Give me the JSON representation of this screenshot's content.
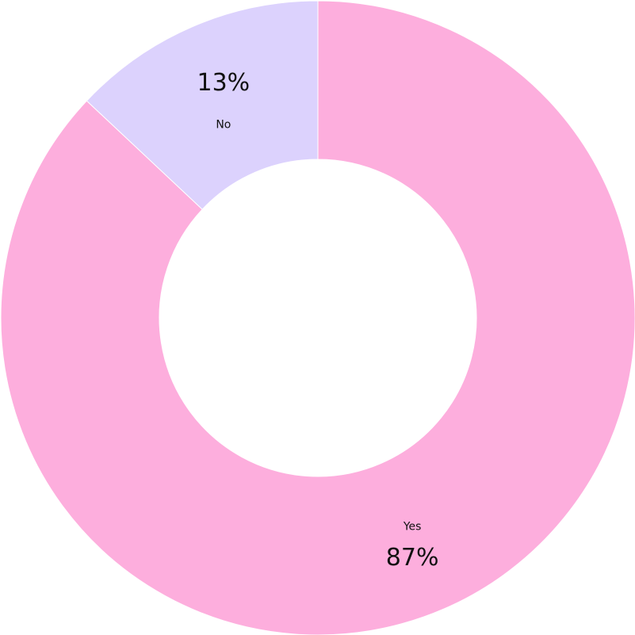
{
  "chart_data": {
    "type": "donut",
    "categories": [
      "Yes",
      "No"
    ],
    "values": [
      87,
      13
    ],
    "value_labels": [
      "87%",
      "13%"
    ],
    "colors": [
      "#fdaedd",
      "#dcd2fd"
    ]
  }
}
